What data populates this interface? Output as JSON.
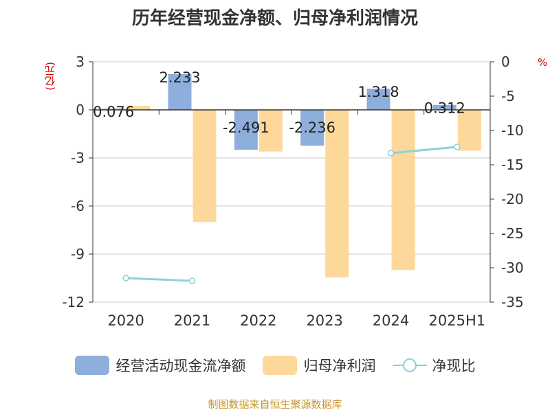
{
  "title": "历年经营现金净额、归母净利润情况",
  "source": "制图数据来自恒生聚源数据库",
  "chart_data": {
    "type": "bar",
    "categories": [
      "2020",
      "2021",
      "2022",
      "2023",
      "2024",
      "2025H1"
    ],
    "left_axis": {
      "unit": "(亿元)",
      "ticks": [
        3,
        0,
        -3,
        -6,
        -9,
        -12
      ],
      "ylim": [
        -12,
        3
      ]
    },
    "right_axis": {
      "unit": "%",
      "ticks": [
        0,
        -5,
        -10,
        -15,
        -20,
        -25,
        -30,
        -35
      ],
      "ylim": [
        -35,
        0
      ]
    },
    "series": [
      {
        "name": "经营活动现金流净额",
        "kind": "bar",
        "axis": "left",
        "color": "#8eaedb",
        "values": [
          0.076,
          2.233,
          -2.491,
          -2.236,
          1.318,
          0.312
        ],
        "labels": [
          "0.076",
          "2.233",
          "-2.491",
          "-2.236",
          "1.318",
          "0.312"
        ]
      },
      {
        "name": "归母净利润",
        "kind": "bar",
        "axis": "left",
        "color": "#fdd89a",
        "values": [
          0.25,
          -7.0,
          -2.6,
          -10.45,
          -10.0,
          -2.55
        ]
      },
      {
        "name": "净现比",
        "kind": "line",
        "axis": "right",
        "color": "#8ad3d6",
        "values": [
          -31.5,
          -31.9,
          null,
          null,
          -13.3,
          -12.4
        ]
      }
    ],
    "legend_position": "bottom",
    "grid": true
  }
}
